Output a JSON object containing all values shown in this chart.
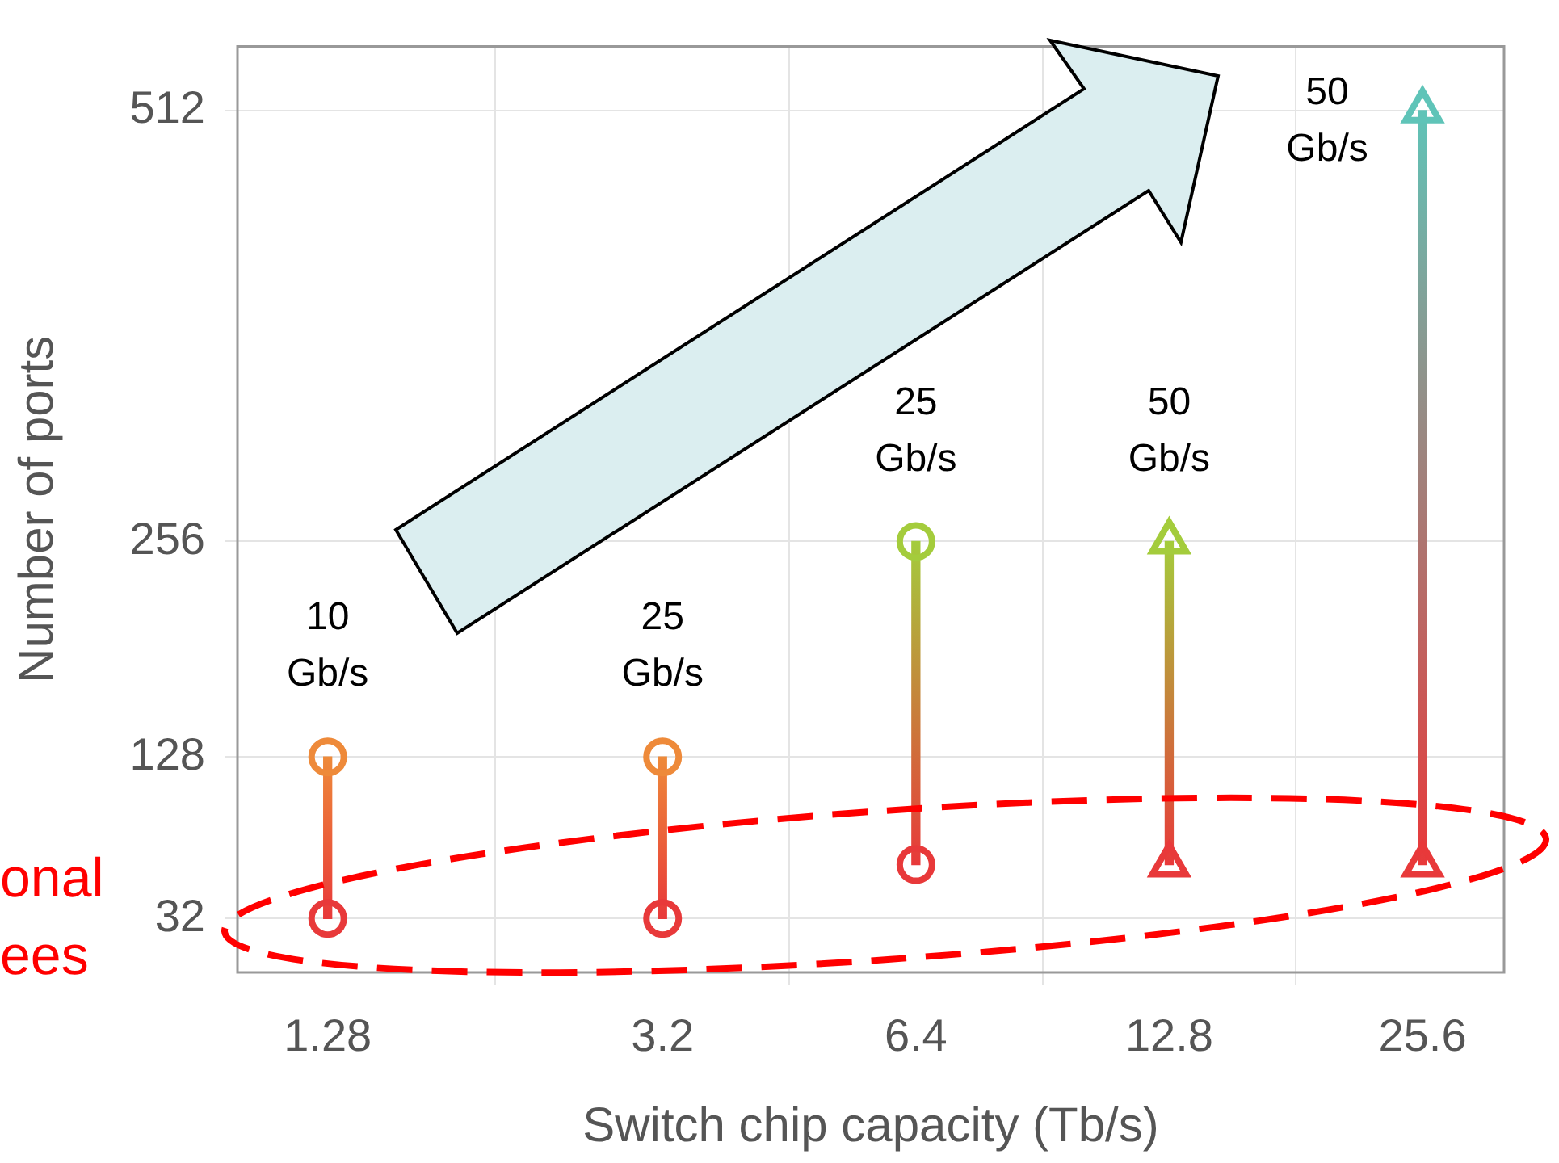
{
  "chart_data": {
    "type": "scatter",
    "xlabel": "Switch chip capacity (Tb/s)",
    "ylabel": "Number of ports",
    "log": "x",
    "xlim": [
      1,
      32
    ],
    "xticks": [
      1.28,
      3.2,
      6.4,
      12.8,
      25.6
    ],
    "ylim": [
      0,
      550
    ],
    "yticks": [
      32,
      128,
      256,
      512
    ],
    "grid": true,
    "marker": "circle",
    "series": [
      {
        "type": "bar",
        "x": [
          1.28,
          3.2,
          6.4,
          12.8,
          25.6
        ],
        "base": [
          32,
          32,
          64,
          64,
          64
        ],
        "values": [
          96,
          96,
          192,
          192,
          448
        ],
        "color": "#e8393a",
        "colors": [
          "#ee8a3a",
          "#ee8a3a",
          "#a4cc3c",
          "#a4cc3c",
          "#5fc4b8"
        ]
      },
      {
        "x": [
          1.28,
          3.2,
          6.4
        ],
        "values": [
          32,
          32,
          64
        ],
        "color": "#e8393a"
      },
      {
        "x": [
          1.28,
          3.2,
          6.4
        ],
        "values": [
          128,
          128,
          256
        ],
        "colors": [
          "#ee8a3a",
          "#ee8a3a",
          "#a4cc3c"
        ]
      },
      {
        "marker": "triangle",
        "x": [
          12.8,
          25.6
        ],
        "values": [
          64,
          64
        ],
        "color": "#e8393a"
      },
      {
        "marker": "triangle",
        "x": [
          12.8,
          25.6
        ],
        "values": [
          256,
          512
        ],
        "colors": [
          "#a4cc3c",
          "#5fc4b8"
        ]
      }
    ],
    "annotations": [
      {
        "text": "10 Gb/s",
        "x": 1.28,
        "y": 128
      },
      {
        "text": "25 Gb/s",
        "x": 3.2,
        "y": 128
      },
      {
        "text": "25 Gb/s",
        "x": 6.4,
        "y": 256
      },
      {
        "text": "50 Gb/s",
        "x": 12.8,
        "y": 256
      },
      {
        "text": "50 Gb/s",
        "x": 25.6,
        "y": 512
      },
      "onal",
      "ees"
    ]
  }
}
